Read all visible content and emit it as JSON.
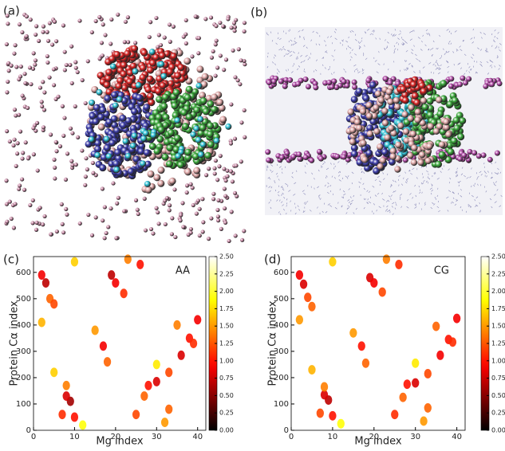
{
  "figure": {
    "panels": [
      "(a)",
      "(b)"
    ]
  },
  "chart_data": [
    {
      "type": "heatmap",
      "panel_label": "(c)",
      "annotation": "AA",
      "x_label": "Mg index",
      "y_label": "Protein Cα index",
      "xlim": [
        0,
        42
      ],
      "ylim": [
        0,
        660
      ],
      "xticks": [
        0,
        10,
        20,
        30,
        40
      ],
      "yticks": [
        0,
        100,
        200,
        300,
        400,
        500,
        600
      ],
      "clim": [
        0,
        2.5
      ],
      "cticks": [
        {
          "value": 0,
          "label": "0.00"
        },
        {
          "value": 0.25,
          "label": "0.25"
        },
        {
          "value": 0.5,
          "label": "0.50"
        },
        {
          "value": 0.75,
          "label": "0.75"
        },
        {
          "value": 1,
          "label": "1.00"
        },
        {
          "value": 1.25,
          "label": "1.25"
        },
        {
          "value": 1.5,
          "label": "1.50"
        },
        {
          "value": 1.75,
          "label": "1.75"
        },
        {
          "value": 2,
          "label": "2.00"
        },
        {
          "value": 2.25,
          "label": "2.25"
        },
        {
          "value": 2.5,
          "label": "2.50"
        }
      ],
      "x": [
        3,
        2,
        4,
        2,
        5,
        10,
        9,
        8,
        7,
        10,
        5,
        8,
        17,
        15,
        18,
        19,
        20,
        22,
        26,
        23,
        30,
        28,
        27,
        25,
        33,
        36,
        38,
        40,
        35,
        33,
        32,
        30,
        12,
        39
      ],
      "y": [
        560,
        590,
        500,
        410,
        480,
        640,
        110,
        130,
        60,
        50,
        220,
        170,
        320,
        380,
        260,
        590,
        560,
        520,
        630,
        650,
        185,
        170,
        130,
        60,
        220,
        285,
        350,
        420,
        400,
        80,
        30,
        250,
        20,
        330
      ],
      "values": [
        0.7,
        0.9,
        1.3,
        1.6,
        1.2,
        1.7,
        0.6,
        0.8,
        1.1,
        1.0,
        1.7,
        1.4,
        0.9,
        1.5,
        1.3,
        0.7,
        0.9,
        1.1,
        1.0,
        1.4,
        0.8,
        1.0,
        1.3,
        1.2,
        1.2,
        0.8,
        1.0,
        0.9,
        1.4,
        1.3,
        1.5,
        1.8,
        1.9,
        1.1
      ]
    },
    {
      "type": "heatmap",
      "panel_label": "(d)",
      "annotation": "CG",
      "x_label": "Mg index",
      "y_label": "Protein Cα index",
      "xlim": [
        0,
        42
      ],
      "ylim": [
        0,
        660
      ],
      "xticks": [
        0,
        10,
        20,
        30,
        40
      ],
      "yticks": [
        0,
        100,
        200,
        300,
        400,
        500,
        600
      ],
      "clim": [
        0,
        2.5
      ],
      "cticks": [
        {
          "value": 0,
          "label": "0.00"
        },
        {
          "value": 0.25,
          "label": "0.25"
        },
        {
          "value": 0.5,
          "label": "0.50"
        },
        {
          "value": 0.75,
          "label": "0.75"
        },
        {
          "value": 1,
          "label": "1.00"
        },
        {
          "value": 1.25,
          "label": "1.25"
        },
        {
          "value": 1.5,
          "label": "1.50"
        },
        {
          "value": 1.75,
          "label": "1.75"
        },
        {
          "value": 2,
          "label": "2.00"
        },
        {
          "value": 2.25,
          "label": "2.25"
        },
        {
          "value": 2.5,
          "label": "2.50"
        }
      ],
      "x": [
        3,
        2,
        4,
        2,
        5,
        10,
        9,
        8,
        7,
        10,
        5,
        8,
        17,
        15,
        18,
        19,
        20,
        22,
        26,
        23,
        30,
        28,
        27,
        25,
        33,
        36,
        38,
        40,
        35,
        33,
        32,
        30,
        12,
        39
      ],
      "y": [
        555,
        590,
        505,
        420,
        470,
        640,
        115,
        135,
        65,
        55,
        230,
        165,
        320,
        370,
        255,
        580,
        560,
        525,
        630,
        650,
        180,
        175,
        125,
        60,
        215,
        285,
        345,
        425,
        395,
        85,
        35,
        255,
        25,
        335
      ],
      "values": [
        0.8,
        0.9,
        1.2,
        1.5,
        1.3,
        1.7,
        0.7,
        0.8,
        1.2,
        1.0,
        1.6,
        1.4,
        1.0,
        1.5,
        1.3,
        0.8,
        0.9,
        1.2,
        1.1,
        1.4,
        0.8,
        1.0,
        1.3,
        1.1,
        1.2,
        0.9,
        1.0,
        0.9,
        1.3,
        1.3,
        1.5,
        1.8,
        1.9,
        1.1
      ]
    }
  ]
}
